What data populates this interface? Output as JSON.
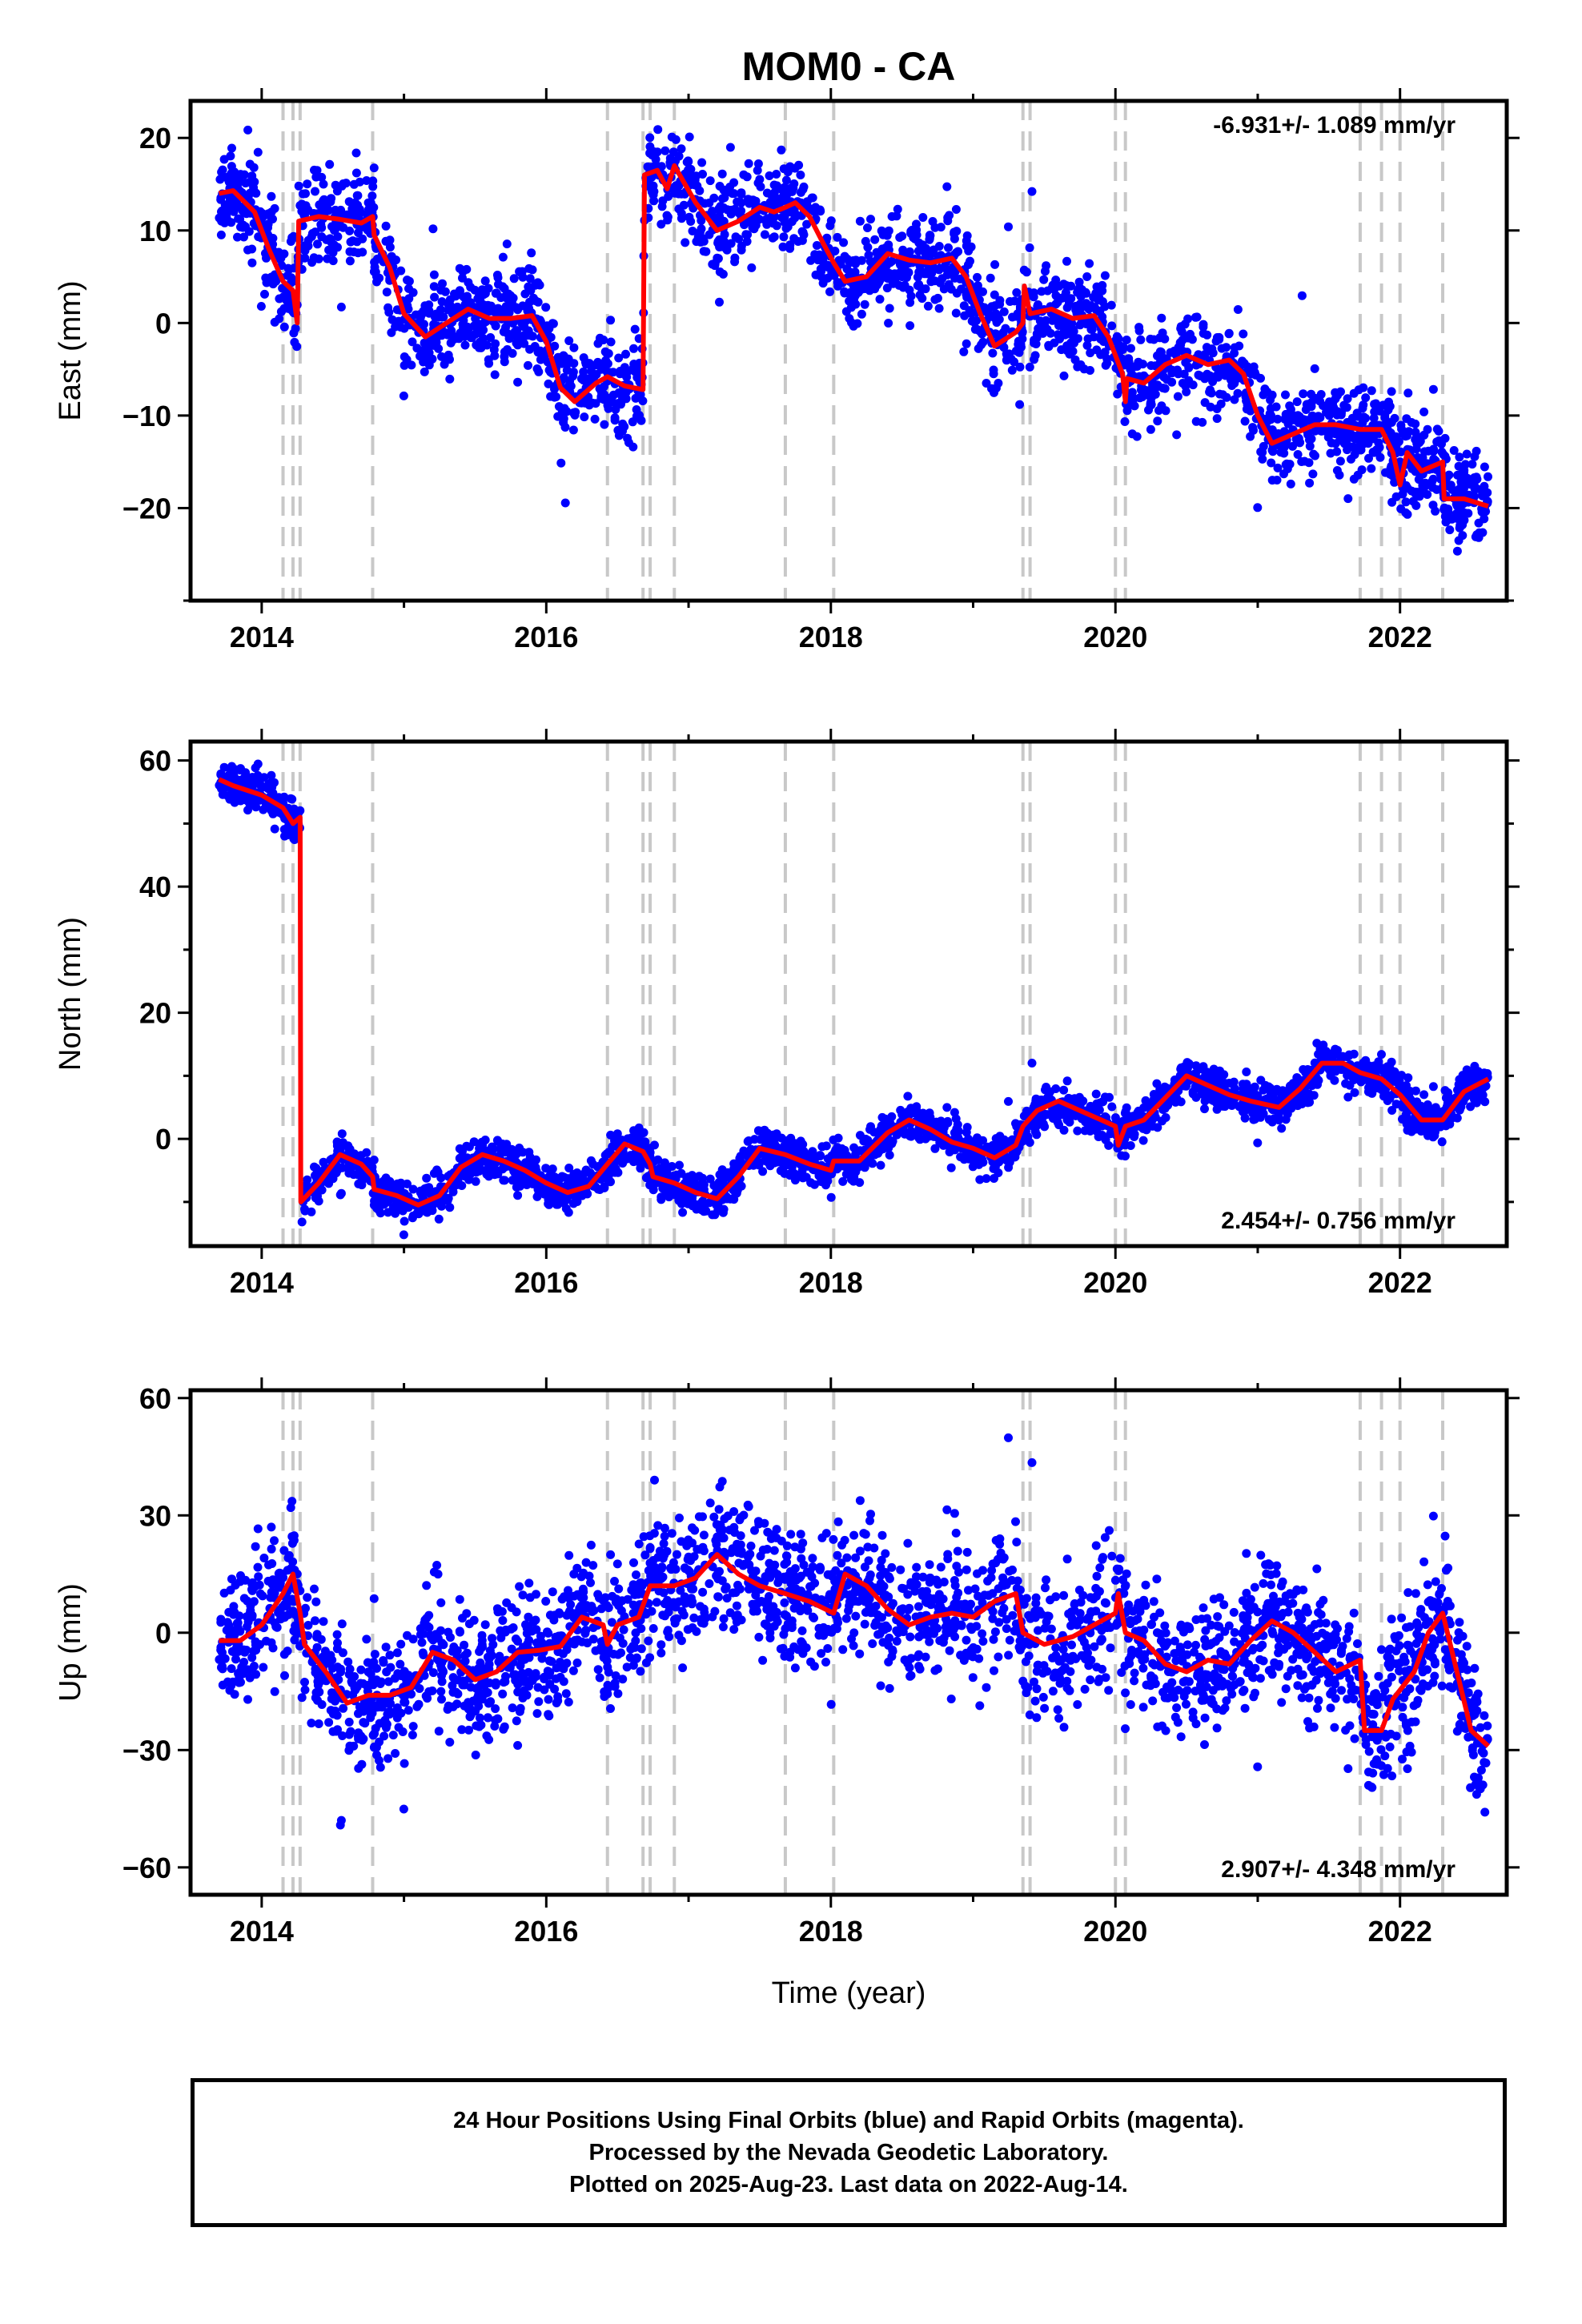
{
  "title": "MOM0 - CA",
  "footer": {
    "line1": "24 Hour Positions Using Final Orbits (blue) and Rapid Orbits (magenta).",
    "line2": "Processed by the Nevada Geodetic Laboratory.",
    "line3": "Plotted on 2025-Aug-23. Last data on 2022-Aug-14."
  },
  "colors": {
    "data_points": "#0000ff",
    "model_fit": "#ff0000",
    "event_lines": "#c8c8c8"
  },
  "chart_data": [
    {
      "type": "scatter",
      "ylabel": "East (mm)",
      "xlabel": "",
      "rate": "-6.931+/- 1.089 mm/yr",
      "rate_position": "top-right",
      "xlim": [
        2013.5,
        2022.75
      ],
      "ylim": [
        -30,
        24
      ],
      "xticks": [
        "2014",
        "2016",
        "2018",
        "2020",
        "2022"
      ],
      "yticks": [
        20,
        10,
        0,
        -10,
        -20
      ],
      "event_lines": [
        2014.15,
        2014.22,
        2014.27,
        2014.78,
        2016.43,
        2016.68,
        2016.73,
        2016.9,
        2017.68,
        2018.02,
        2019.35,
        2019.4,
        2020.0,
        2020.07,
        2021.72,
        2021.87,
        2022.0,
        2022.3
      ],
      "model": [
        [
          2013.7,
          14
        ],
        [
          2013.8,
          14.3
        ],
        [
          2013.95,
          12
        ],
        [
          2014.05,
          8
        ],
        [
          2014.15,
          4.5
        ],
        [
          2014.22,
          3.5
        ],
        [
          2014.25,
          0
        ],
        [
          2014.26,
          11
        ],
        [
          2014.4,
          11.5
        ],
        [
          2014.55,
          11.2
        ],
        [
          2014.7,
          10.8
        ],
        [
          2014.78,
          11.5
        ],
        [
          2014.79,
          9.5
        ],
        [
          2014.9,
          6
        ],
        [
          2015.0,
          1
        ],
        [
          2015.15,
          -1.5
        ],
        [
          2015.3,
          0
        ],
        [
          2015.45,
          1.5
        ],
        [
          2015.6,
          0.5
        ],
        [
          2015.75,
          0.5
        ],
        [
          2015.9,
          0.8
        ],
        [
          2016.0,
          -2
        ],
        [
          2016.1,
          -7
        ],
        [
          2016.2,
          -8.5
        ],
        [
          2016.35,
          -6.5
        ],
        [
          2016.43,
          -5.8
        ],
        [
          2016.55,
          -6.8
        ],
        [
          2016.68,
          -7.2
        ],
        [
          2016.69,
          16
        ],
        [
          2016.78,
          16.5
        ],
        [
          2016.85,
          14.5
        ],
        [
          2016.9,
          17
        ],
        [
          2017.05,
          13
        ],
        [
          2017.2,
          10
        ],
        [
          2017.35,
          11
        ],
        [
          2017.5,
          12.5
        ],
        [
          2017.6,
          12
        ],
        [
          2017.68,
          12.5
        ],
        [
          2017.75,
          13
        ],
        [
          2017.85,
          11.5
        ],
        [
          2017.95,
          8.5
        ],
        [
          2018.02,
          6.5
        ],
        [
          2018.1,
          4.5
        ],
        [
          2018.25,
          5
        ],
        [
          2018.4,
          7.5
        ],
        [
          2018.55,
          6.8
        ],
        [
          2018.7,
          6.5
        ],
        [
          2018.85,
          7
        ],
        [
          2018.95,
          5
        ],
        [
          2019.05,
          1
        ],
        [
          2019.15,
          -2.5
        ],
        [
          2019.3,
          -1
        ],
        [
          2019.35,
          0
        ],
        [
          2019.36,
          4
        ],
        [
          2019.4,
          1
        ],
        [
          2019.55,
          1.5
        ],
        [
          2019.7,
          0.5
        ],
        [
          2019.85,
          0.8
        ],
        [
          2019.95,
          -1.5
        ],
        [
          2020.05,
          -5.5
        ],
        [
          2020.07,
          -8.5
        ],
        [
          2020.08,
          -6
        ],
        [
          2020.2,
          -6.5
        ],
        [
          2020.35,
          -4.5
        ],
        [
          2020.5,
          -3.5
        ],
        [
          2020.65,
          -4.5
        ],
        [
          2020.8,
          -4
        ],
        [
          2020.9,
          -5.5
        ],
        [
          2021.0,
          -10
        ],
        [
          2021.1,
          -13
        ],
        [
          2021.25,
          -12
        ],
        [
          2021.4,
          -11
        ],
        [
          2021.55,
          -11
        ],
        [
          2021.72,
          -11.5
        ],
        [
          2021.87,
          -11.5
        ],
        [
          2021.95,
          -14
        ],
        [
          2022.0,
          -17.5
        ],
        [
          2022.05,
          -14
        ],
        [
          2022.15,
          -16
        ],
        [
          2022.3,
          -15
        ],
        [
          2022.31,
          -19
        ],
        [
          2022.45,
          -19
        ],
        [
          2022.62,
          -19.8
        ]
      ]
    },
    {
      "type": "scatter",
      "ylabel": "North (mm)",
      "xlabel": "",
      "rate": "2.454+/- 0.756 mm/yr",
      "rate_position": "bottom-right",
      "xlim": [
        2013.5,
        2022.75
      ],
      "ylim": [
        -17,
        63
      ],
      "xticks": [
        "2014",
        "2016",
        "2018",
        "2020",
        "2022"
      ],
      "yticks": [
        60,
        40,
        20,
        0
      ],
      "event_lines": [
        2014.15,
        2014.22,
        2014.27,
        2014.78,
        2016.43,
        2016.68,
        2016.73,
        2016.9,
        2017.68,
        2018.02,
        2019.35,
        2019.4,
        2020.0,
        2020.07,
        2021.72,
        2021.87,
        2022.0,
        2022.3
      ],
      "model": [
        [
          2013.7,
          57
        ],
        [
          2013.8,
          56
        ],
        [
          2014.0,
          54.5
        ],
        [
          2014.15,
          52.5
        ],
        [
          2014.22,
          50
        ],
        [
          2014.27,
          51
        ],
        [
          2014.275,
          -10
        ],
        [
          2014.4,
          -7
        ],
        [
          2014.55,
          -2.5
        ],
        [
          2014.7,
          -4
        ],
        [
          2014.78,
          -6
        ],
        [
          2014.79,
          -8
        ],
        [
          2014.95,
          -9
        ],
        [
          2015.1,
          -10.5
        ],
        [
          2015.25,
          -9
        ],
        [
          2015.4,
          -4.5
        ],
        [
          2015.55,
          -2.5
        ],
        [
          2015.7,
          -3.5
        ],
        [
          2015.85,
          -5
        ],
        [
          2016.0,
          -7
        ],
        [
          2016.15,
          -8.5
        ],
        [
          2016.3,
          -7.5
        ],
        [
          2016.43,
          -4
        ],
        [
          2016.55,
          -0.8
        ],
        [
          2016.68,
          -2
        ],
        [
          2016.73,
          -4
        ],
        [
          2016.75,
          -6
        ],
        [
          2016.9,
          -7
        ],
        [
          2017.05,
          -8.5
        ],
        [
          2017.2,
          -9.5
        ],
        [
          2017.35,
          -6
        ],
        [
          2017.5,
          -1.5
        ],
        [
          2017.68,
          -2.5
        ],
        [
          2017.85,
          -4
        ],
        [
          2018.0,
          -5
        ],
        [
          2018.02,
          -3.5
        ],
        [
          2018.2,
          -3.5
        ],
        [
          2018.4,
          1
        ],
        [
          2018.55,
          3
        ],
        [
          2018.7,
          1.5
        ],
        [
          2018.85,
          -0.5
        ],
        [
          2019.0,
          -1.5
        ],
        [
          2019.15,
          -3
        ],
        [
          2019.3,
          -1
        ],
        [
          2019.35,
          2
        ],
        [
          2019.45,
          4.5
        ],
        [
          2019.6,
          6
        ],
        [
          2019.75,
          4.5
        ],
        [
          2019.9,
          3
        ],
        [
          2020.0,
          2
        ],
        [
          2020.02,
          -1
        ],
        [
          2020.07,
          2
        ],
        [
          2020.2,
          3
        ],
        [
          2020.35,
          6.5
        ],
        [
          2020.5,
          10
        ],
        [
          2020.65,
          8.5
        ],
        [
          2020.8,
          7
        ],
        [
          2020.95,
          6
        ],
        [
          2021.15,
          5
        ],
        [
          2021.3,
          8
        ],
        [
          2021.45,
          12
        ],
        [
          2021.6,
          12
        ],
        [
          2021.72,
          10.5
        ],
        [
          2021.87,
          9.5
        ],
        [
          2022.0,
          7
        ],
        [
          2022.15,
          3
        ],
        [
          2022.3,
          3
        ],
        [
          2022.45,
          7.5
        ],
        [
          2022.62,
          9.5
        ]
      ]
    },
    {
      "type": "scatter",
      "ylabel": "Up (mm)",
      "xlabel": "Time (year)",
      "rate": "2.907+/- 4.348 mm/yr",
      "rate_position": "bottom-right",
      "xlim": [
        2013.5,
        2022.75
      ],
      "ylim": [
        -67,
        62
      ],
      "xticks": [
        "2014",
        "2016",
        "2018",
        "2020",
        "2022"
      ],
      "yticks": [
        60,
        30,
        0,
        -30,
        -60
      ],
      "event_lines": [
        2014.15,
        2014.22,
        2014.27,
        2014.78,
        2016.43,
        2016.68,
        2016.73,
        2016.9,
        2017.68,
        2018.02,
        2019.35,
        2019.4,
        2020.0,
        2020.07,
        2021.72,
        2021.87,
        2022.0,
        2022.3
      ],
      "model": [
        [
          2013.7,
          -2
        ],
        [
          2013.85,
          -2
        ],
        [
          2014.0,
          2
        ],
        [
          2014.15,
          10
        ],
        [
          2014.22,
          15
        ],
        [
          2014.27,
          5
        ],
        [
          2014.3,
          -3
        ],
        [
          2014.45,
          -10
        ],
        [
          2014.6,
          -18
        ],
        [
          2014.75,
          -16
        ],
        [
          2014.9,
          -16
        ],
        [
          2015.05,
          -14
        ],
        [
          2015.2,
          -5
        ],
        [
          2015.35,
          -7
        ],
        [
          2015.5,
          -12
        ],
        [
          2015.65,
          -10
        ],
        [
          2015.8,
          -5
        ],
        [
          2015.95,
          -4.5
        ],
        [
          2016.1,
          -3.5
        ],
        [
          2016.25,
          4
        ],
        [
          2016.4,
          2
        ],
        [
          2016.43,
          -3
        ],
        [
          2016.5,
          2
        ],
        [
          2016.65,
          4
        ],
        [
          2016.73,
          12
        ],
        [
          2016.9,
          12
        ],
        [
          2017.05,
          14
        ],
        [
          2017.2,
          20
        ],
        [
          2017.35,
          15
        ],
        [
          2017.5,
          12
        ],
        [
          2017.68,
          10
        ],
        [
          2017.85,
          8
        ],
        [
          2018.02,
          5
        ],
        [
          2018.1,
          15
        ],
        [
          2018.25,
          12
        ],
        [
          2018.4,
          6
        ],
        [
          2018.55,
          2
        ],
        [
          2018.7,
          4
        ],
        [
          2018.85,
          5
        ],
        [
          2019.0,
          4
        ],
        [
          2019.15,
          8
        ],
        [
          2019.3,
          10
        ],
        [
          2019.35,
          0
        ],
        [
          2019.5,
          -3
        ],
        [
          2019.7,
          -1
        ],
        [
          2019.85,
          2
        ],
        [
          2020.0,
          5
        ],
        [
          2020.02,
          10
        ],
        [
          2020.07,
          0
        ],
        [
          2020.2,
          -2
        ],
        [
          2020.35,
          -8
        ],
        [
          2020.5,
          -10
        ],
        [
          2020.65,
          -7
        ],
        [
          2020.8,
          -8
        ],
        [
          2020.95,
          -2
        ],
        [
          2021.1,
          3
        ],
        [
          2021.25,
          0
        ],
        [
          2021.4,
          -5
        ],
        [
          2021.55,
          -10
        ],
        [
          2021.72,
          -7
        ],
        [
          2021.75,
          -25
        ],
        [
          2021.87,
          -25
        ],
        [
          2021.95,
          -17
        ],
        [
          2022.1,
          -10
        ],
        [
          2022.2,
          0
        ],
        [
          2022.3,
          5
        ],
        [
          2022.4,
          -10
        ],
        [
          2022.5,
          -25
        ],
        [
          2022.62,
          -29
        ]
      ]
    }
  ]
}
